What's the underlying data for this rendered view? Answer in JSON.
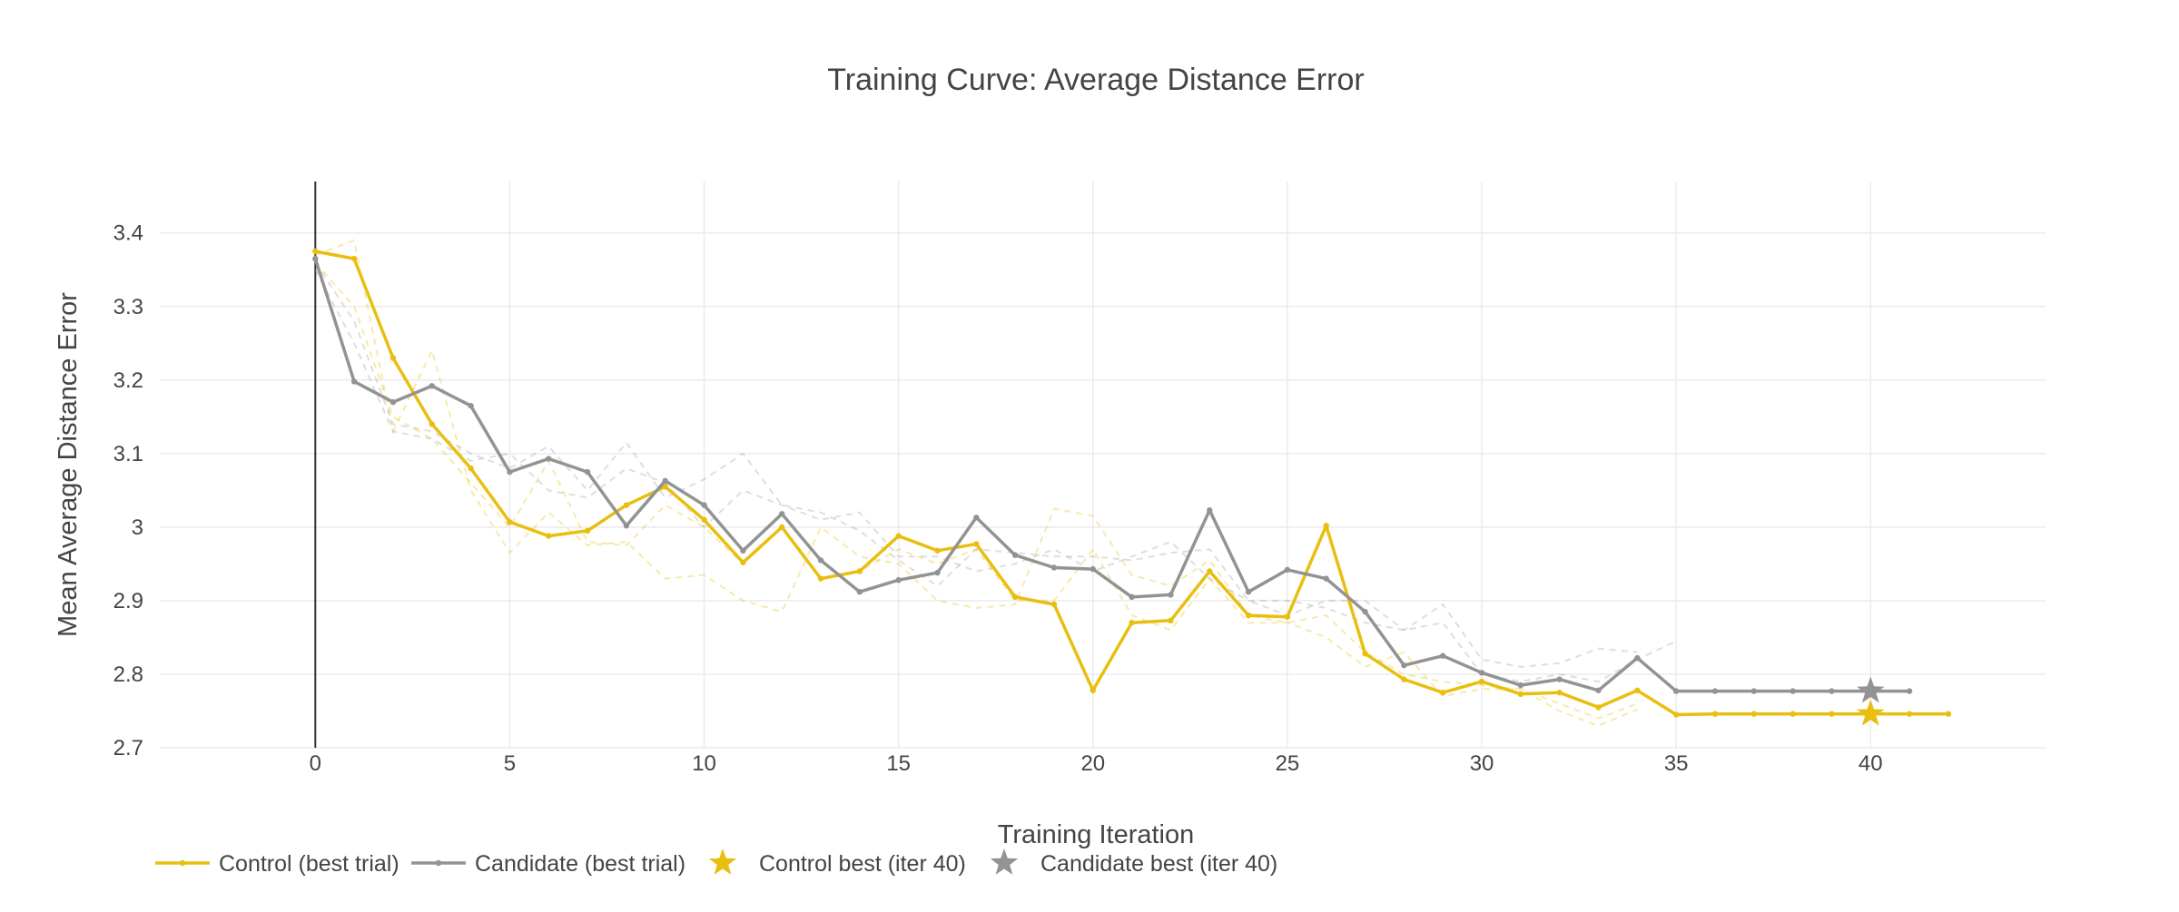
{
  "chart_data": {
    "type": "line",
    "title": "Training Curve: Average Distance Error",
    "xlabel": "Training Iteration",
    "ylabel": "Mean Average Distance Error",
    "xlim": [
      -4,
      44.5
    ],
    "ylim": [
      2.7,
      3.47
    ],
    "xticks": [
      0,
      5,
      10,
      15,
      20,
      25,
      30,
      35,
      40
    ],
    "yticks": [
      2.7,
      2.8,
      2.9,
      3.0,
      3.1,
      3.2,
      3.3,
      3.4
    ],
    "ytick_labels": [
      "2.7",
      "2.8",
      "2.9",
      "3",
      "3.1",
      "3.2",
      "3.3",
      "3.4"
    ],
    "grid": true,
    "legend_position": "bottom-left",
    "colors": {
      "control": "#E8BF10",
      "candidate": "#939393",
      "grid": "#EBEBEB",
      "axis": "#333333"
    },
    "series": [
      {
        "name": "Control (best trial)",
        "color": "#E8BF10",
        "x": [
          0,
          1,
          2,
          3,
          4,
          5,
          6,
          7,
          8,
          9,
          10,
          11,
          12,
          13,
          14,
          15,
          16,
          17,
          18,
          19,
          20,
          21,
          22,
          23,
          24,
          25,
          26,
          27,
          28,
          29,
          30,
          31,
          32,
          33,
          34,
          35,
          36,
          37,
          38,
          39,
          40,
          41,
          42
        ],
        "y": [
          3.375,
          3.365,
          3.23,
          3.14,
          3.08,
          3.007,
          2.988,
          2.995,
          3.03,
          3.055,
          3.01,
          2.952,
          3.0,
          2.93,
          2.94,
          2.988,
          2.968,
          2.977,
          2.905,
          2.895,
          2.778,
          2.87,
          2.873,
          2.94,
          2.88,
          2.878,
          3.002,
          2.828,
          2.793,
          2.775,
          2.79,
          2.773,
          2.775,
          2.755,
          2.778,
          2.745,
          2.746,
          2.746,
          2.746,
          2.746,
          2.746,
          2.746,
          2.746
        ]
      },
      {
        "name": "Candidate (best trial)",
        "color": "#939393",
        "x": [
          0,
          1,
          2,
          3,
          4,
          5,
          6,
          7,
          8,
          9,
          10,
          11,
          12,
          13,
          14,
          15,
          16,
          17,
          18,
          19,
          20,
          21,
          22,
          23,
          24,
          25,
          26,
          27,
          28,
          29,
          30,
          31,
          32,
          33,
          34,
          35,
          36,
          37,
          38,
          39,
          40,
          41
        ],
        "y": [
          3.365,
          3.198,
          3.17,
          3.192,
          3.165,
          3.075,
          3.093,
          3.075,
          3.002,
          3.063,
          3.03,
          2.968,
          3.018,
          2.955,
          2.912,
          2.928,
          2.938,
          3.013,
          2.962,
          2.945,
          2.943,
          2.905,
          2.908,
          3.023,
          2.912,
          2.942,
          2.93,
          2.885,
          2.812,
          2.825,
          2.802,
          2.785,
          2.793,
          2.778,
          2.822,
          2.777,
          2.777,
          2.777,
          2.777,
          2.777,
          2.777,
          2.777
        ]
      }
    ],
    "background_trials": [
      {
        "group": "control",
        "x": [
          0,
          1,
          2,
          3,
          4,
          5,
          6,
          7,
          8,
          9,
          10,
          11,
          12,
          13,
          14,
          15,
          16,
          17,
          18,
          19,
          20,
          21,
          22,
          23,
          24,
          25,
          26,
          27,
          28,
          29,
          30,
          31,
          32,
          33,
          34
        ],
        "y": [
          3.37,
          3.39,
          3.13,
          3.24,
          3.05,
          2.965,
          3.02,
          2.975,
          2.98,
          2.93,
          2.935,
          2.9,
          2.885,
          3.0,
          2.96,
          2.95,
          2.9,
          2.89,
          2.895,
          3.025,
          3.015,
          2.935,
          2.92,
          2.955,
          2.88,
          2.87,
          2.88,
          2.83,
          2.8,
          2.79,
          2.785,
          2.78,
          2.75,
          2.73,
          2.752
        ]
      },
      {
        "group": "control",
        "x": [
          0,
          1,
          2,
          3,
          4,
          5,
          6,
          7,
          8,
          9,
          10,
          11,
          12,
          13,
          14,
          15,
          16,
          17,
          18,
          19,
          20,
          21,
          22,
          23,
          24,
          25,
          26,
          27,
          28,
          29,
          30,
          31,
          32,
          33,
          34
        ],
        "y": [
          3.36,
          3.3,
          3.15,
          3.12,
          3.06,
          3.0,
          3.09,
          2.98,
          2.975,
          3.03,
          3.0,
          2.95,
          3.0,
          2.93,
          2.94,
          2.97,
          2.95,
          2.97,
          2.9,
          2.9,
          2.97,
          2.88,
          2.86,
          2.93,
          2.87,
          2.87,
          2.85,
          2.81,
          2.83,
          2.77,
          2.78,
          2.78,
          2.76,
          2.74,
          2.76
        ]
      },
      {
        "group": "candidate",
        "x": [
          0,
          1,
          2,
          3,
          4,
          5,
          6,
          7,
          8,
          9,
          10,
          11,
          12,
          13,
          14,
          15,
          16,
          17,
          18,
          19,
          20,
          21,
          22,
          23,
          24,
          25,
          26,
          27,
          28,
          29,
          30,
          31,
          32,
          33,
          34
        ],
        "y": [
          3.36,
          3.28,
          3.14,
          3.13,
          3.1,
          3.08,
          3.11,
          3.05,
          3.115,
          3.04,
          3.065,
          3.1,
          3.03,
          3.02,
          2.995,
          2.955,
          2.92,
          2.97,
          2.965,
          2.96,
          2.96,
          2.955,
          2.965,
          2.97,
          2.9,
          2.88,
          2.9,
          2.9,
          2.86,
          2.895,
          2.82,
          2.81,
          2.815,
          2.835,
          2.83
        ]
      },
      {
        "group": "candidate",
        "x": [
          0,
          1,
          2,
          3,
          4,
          5,
          6,
          7,
          8,
          9,
          10,
          11,
          12,
          13,
          14,
          15,
          16,
          17,
          18,
          19,
          20,
          21,
          22,
          23,
          24,
          25,
          26,
          27,
          28,
          29,
          30,
          31,
          32,
          33,
          34,
          35
        ],
        "y": [
          3.35,
          3.25,
          3.13,
          3.12,
          3.09,
          3.1,
          3.05,
          3.04,
          3.08,
          3.06,
          3.0,
          3.05,
          3.03,
          3.01,
          3.02,
          2.96,
          2.96,
          2.94,
          2.95,
          2.97,
          2.94,
          2.96,
          2.98,
          2.93,
          2.9,
          2.9,
          2.89,
          2.87,
          2.86,
          2.87,
          2.8,
          2.79,
          2.8,
          2.79,
          2.82,
          2.845
        ]
      }
    ],
    "best_markers": [
      {
        "name": "Control best (iter 40)",
        "x": 40,
        "y": 2.746,
        "color": "#E8BF10"
      },
      {
        "name": "Candidate best (iter 40)",
        "x": 40,
        "y": 2.777,
        "color": "#939393"
      }
    ]
  }
}
